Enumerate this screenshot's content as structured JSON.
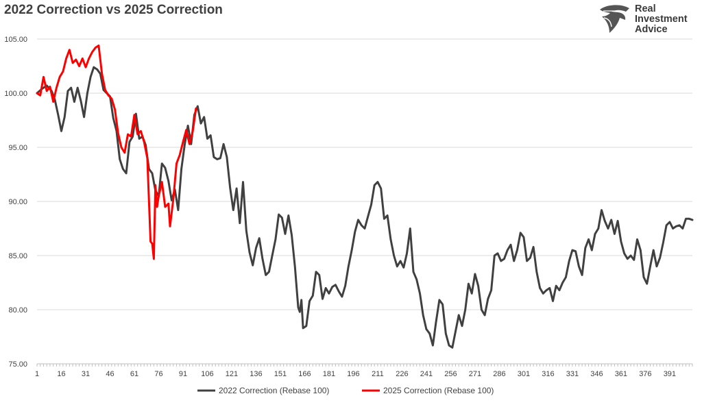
{
  "header": {
    "title": "2022 Correction vs 2025 Correction"
  },
  "logo": {
    "line1": "Real",
    "line2": "Investment",
    "line3": "Advice",
    "icon": "eagle-head-icon"
  },
  "chart_data": {
    "type": "line",
    "title": "2022 Correction vs 2025 Correction",
    "xlabel": "",
    "ylabel": "",
    "xlim": [
      1,
      405
    ],
    "ylim": [
      75,
      105
    ],
    "yticks": [
      "75.00",
      "80.00",
      "85.00",
      "90.00",
      "95.00",
      "100.00",
      "105.00"
    ],
    "xticks": [
      1,
      16,
      31,
      46,
      61,
      76,
      91,
      106,
      121,
      136,
      151,
      166,
      181,
      196,
      211,
      226,
      241,
      256,
      271,
      286,
      301,
      316,
      331,
      346,
      361,
      376,
      391
    ],
    "grid": "horizontal",
    "legend": "bottom-center",
    "series": [
      {
        "name": "2022 Correction (Rebase 100)",
        "color": "#404040",
        "points": [
          [
            1,
            100
          ],
          [
            4,
            100.4
          ],
          [
            7,
            100.7
          ],
          [
            10,
            100.2
          ],
          [
            12,
            99.4
          ],
          [
            14,
            98
          ],
          [
            16,
            96.5
          ],
          [
            18,
            97.8
          ],
          [
            20,
            100.2
          ],
          [
            22,
            100.5
          ],
          [
            24,
            99.2
          ],
          [
            26,
            100.5
          ],
          [
            28,
            99.3
          ],
          [
            30,
            97.8
          ],
          [
            32,
            100
          ],
          [
            34,
            101.5
          ],
          [
            36,
            102.4
          ],
          [
            38,
            102.2
          ],
          [
            40,
            101.8
          ],
          [
            42,
            100.3
          ],
          [
            44,
            100
          ],
          [
            46,
            99.7
          ],
          [
            48,
            97.7
          ],
          [
            50,
            96.5
          ],
          [
            52,
            93.9
          ],
          [
            54,
            93
          ],
          [
            56,
            92.6
          ],
          [
            58,
            95.5
          ],
          [
            60,
            96
          ],
          [
            62,
            98.1
          ],
          [
            64,
            95.8
          ],
          [
            66,
            96
          ],
          [
            68,
            95.2
          ],
          [
            70,
            93
          ],
          [
            72,
            92.6
          ],
          [
            74,
            91
          ],
          [
            76,
            90.5
          ],
          [
            78,
            93.5
          ],
          [
            80,
            93.1
          ],
          [
            82,
            91.9
          ],
          [
            84,
            90.1
          ],
          [
            86,
            91.1
          ],
          [
            88,
            89.2
          ],
          [
            90,
            93
          ],
          [
            92,
            95.2
          ],
          [
            94,
            97
          ],
          [
            96,
            95.3
          ],
          [
            98,
            98
          ],
          [
            100,
            98.8
          ],
          [
            102,
            97.2
          ],
          [
            104,
            97.8
          ],
          [
            106,
            95.8
          ],
          [
            108,
            96.1
          ],
          [
            110,
            94.1
          ],
          [
            112,
            93.9
          ],
          [
            114,
            94
          ],
          [
            116,
            95.3
          ],
          [
            118,
            94.1
          ],
          [
            120,
            91.3
          ],
          [
            122,
            89.2
          ],
          [
            124,
            91.2
          ],
          [
            126,
            88
          ],
          [
            128,
            91.8
          ],
          [
            130,
            87.3
          ],
          [
            132,
            85.3
          ],
          [
            134,
            84.1
          ],
          [
            136,
            85.7
          ],
          [
            138,
            86.6
          ],
          [
            140,
            84.7
          ],
          [
            142,
            83.2
          ],
          [
            144,
            83.5
          ],
          [
            146,
            85
          ],
          [
            148,
            86.5
          ],
          [
            150,
            88.8
          ],
          [
            152,
            88.5
          ],
          [
            154,
            87
          ],
          [
            156,
            88.7
          ],
          [
            158,
            86.9
          ],
          [
            160,
            84
          ],
          [
            162,
            80.2
          ],
          [
            163,
            79.8
          ],
          [
            164,
            80.9
          ],
          [
            165,
            78.3
          ],
          [
            167,
            78.5
          ],
          [
            169,
            80.8
          ],
          [
            171,
            81.3
          ],
          [
            173,
            83.5
          ],
          [
            175,
            83.2
          ],
          [
            177,
            81
          ],
          [
            179,
            82
          ],
          [
            181,
            81.5
          ],
          [
            183,
            82.1
          ],
          [
            185,
            82.3
          ],
          [
            187,
            81.7
          ],
          [
            189,
            81.2
          ],
          [
            191,
            82.2
          ],
          [
            193,
            84
          ],
          [
            195,
            85.5
          ],
          [
            197,
            87.2
          ],
          [
            199,
            88.3
          ],
          [
            201,
            87.8
          ],
          [
            203,
            87.5
          ],
          [
            205,
            88.6
          ],
          [
            207,
            89.7
          ],
          [
            209,
            91.5
          ],
          [
            211,
            91.8
          ],
          [
            213,
            91.2
          ],
          [
            215,
            88.4
          ],
          [
            217,
            88.7
          ],
          [
            219,
            86.5
          ],
          [
            221,
            85
          ],
          [
            223,
            84
          ],
          [
            225,
            84.5
          ],
          [
            227,
            83.9
          ],
          [
            229,
            85.2
          ],
          [
            231,
            87.5
          ],
          [
            233,
            83.5
          ],
          [
            235,
            82.8
          ],
          [
            237,
            81.5
          ],
          [
            239,
            79.5
          ],
          [
            241,
            78.2
          ],
          [
            243,
            77.8
          ],
          [
            245,
            76.7
          ],
          [
            247,
            78.9
          ],
          [
            249,
            80.9
          ],
          [
            251,
            80.5
          ],
          [
            253,
            77.8
          ],
          [
            255,
            76.7
          ],
          [
            257,
            76.5
          ],
          [
            259,
            78
          ],
          [
            261,
            79.5
          ],
          [
            263,
            78.5
          ],
          [
            265,
            80
          ],
          [
            267,
            82.4
          ],
          [
            269,
            81.5
          ],
          [
            271,
            83.3
          ],
          [
            273,
            82.2
          ],
          [
            275,
            80
          ],
          [
            277,
            79.5
          ],
          [
            279,
            81
          ],
          [
            281,
            81.8
          ],
          [
            283,
            85
          ],
          [
            285,
            85.2
          ],
          [
            287,
            84.5
          ],
          [
            289,
            84.7
          ],
          [
            291,
            85.5
          ],
          [
            293,
            86
          ],
          [
            295,
            84.5
          ],
          [
            297,
            85.5
          ],
          [
            299,
            87.1
          ],
          [
            301,
            86.7
          ],
          [
            303,
            84.5
          ],
          [
            305,
            84.8
          ],
          [
            307,
            85.8
          ],
          [
            309,
            83.5
          ],
          [
            311,
            82
          ],
          [
            313,
            81.5
          ],
          [
            315,
            81.8
          ],
          [
            317,
            82
          ],
          [
            319,
            80.8
          ],
          [
            321,
            82.2
          ],
          [
            323,
            81.8
          ],
          [
            325,
            82.5
          ],
          [
            327,
            83
          ],
          [
            329,
            84.5
          ],
          [
            331,
            85.5
          ],
          [
            333,
            85.4
          ],
          [
            335,
            84
          ],
          [
            337,
            83.2
          ],
          [
            339,
            85.7
          ],
          [
            341,
            86.5
          ],
          [
            343,
            85.5
          ],
          [
            345,
            87
          ],
          [
            347,
            87.5
          ],
          [
            349,
            89.2
          ],
          [
            351,
            88.2
          ],
          [
            353,
            87.5
          ],
          [
            355,
            88.3
          ],
          [
            357,
            87
          ],
          [
            359,
            88.2
          ],
          [
            361,
            86.3
          ],
          [
            363,
            85.2
          ],
          [
            365,
            84.7
          ],
          [
            367,
            85
          ],
          [
            369,
            84.6
          ],
          [
            371,
            86.5
          ],
          [
            373,
            85.5
          ],
          [
            375,
            83
          ],
          [
            377,
            82.4
          ],
          [
            379,
            84
          ],
          [
            381,
            85.5
          ],
          [
            383,
            84
          ],
          [
            385,
            84.8
          ],
          [
            387,
            86.2
          ],
          [
            389,
            87.8
          ],
          [
            391,
            88.1
          ],
          [
            393,
            87.5
          ],
          [
            395,
            87.7
          ],
          [
            397,
            87.8
          ],
          [
            399,
            87.5
          ],
          [
            401,
            88.4
          ],
          [
            403,
            88.4
          ],
          [
            405,
            88.3
          ]
        ]
      },
      {
        "name": "2025 Correction (Rebase 100)",
        "color": "#ff0000",
        "points": [
          [
            1,
            100
          ],
          [
            3,
            99.8
          ],
          [
            5,
            101.5
          ],
          [
            7,
            100.2
          ],
          [
            9,
            100.6
          ],
          [
            11,
            99.2
          ],
          [
            13,
            100.5
          ],
          [
            15,
            101.5
          ],
          [
            17,
            102
          ],
          [
            19,
            103.2
          ],
          [
            21,
            104
          ],
          [
            23,
            102.8
          ],
          [
            25,
            103.1
          ],
          [
            27,
            102.5
          ],
          [
            29,
            103.2
          ],
          [
            31,
            102.4
          ],
          [
            33,
            103.2
          ],
          [
            35,
            103.8
          ],
          [
            37,
            104.2
          ],
          [
            39,
            104.4
          ],
          [
            41,
            101.8
          ],
          [
            43,
            100.3
          ],
          [
            45,
            99.8
          ],
          [
            47,
            99.5
          ],
          [
            49,
            98.5
          ],
          [
            51,
            96.3
          ],
          [
            53,
            95
          ],
          [
            55,
            94.5
          ],
          [
            57,
            96.2
          ],
          [
            59,
            96
          ],
          [
            61,
            98
          ],
          [
            63,
            96.2
          ],
          [
            65,
            96.5
          ],
          [
            67,
            95.5
          ],
          [
            69,
            94
          ],
          [
            71,
            86.3
          ],
          [
            72,
            86.1
          ],
          [
            73,
            84.7
          ],
          [
            74,
            91.5
          ],
          [
            75,
            89.5
          ],
          [
            76,
            90.5
          ],
          [
            78,
            91.8
          ],
          [
            80,
            89.5
          ],
          [
            82,
            89.8
          ],
          [
            83,
            87.7
          ],
          [
            85,
            90.2
          ],
          [
            87,
            93.5
          ],
          [
            89,
            94.3
          ],
          [
            91,
            95.5
          ],
          [
            93,
            96.6
          ],
          [
            95,
            95.3
          ],
          [
            97,
            96.5
          ],
          [
            99,
            98.6
          ]
        ]
      }
    ]
  }
}
